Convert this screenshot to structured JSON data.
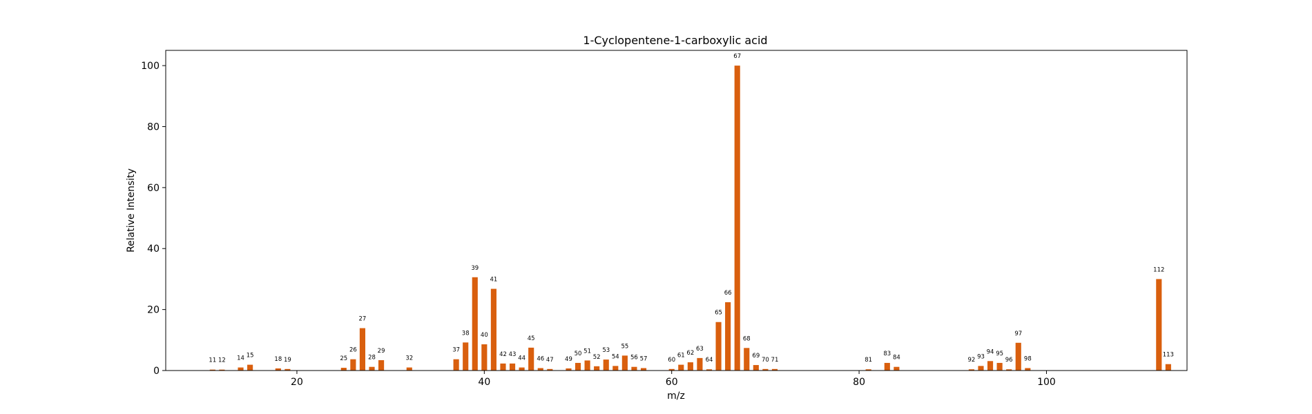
{
  "chart_data": {
    "type": "bar",
    "title": "1-Cyclopentene-1-carboxylic acid",
    "xlabel": "m/z",
    "ylabel": "Relative Intensity",
    "xlim": [
      6,
      115
    ],
    "ylim": [
      0,
      105
    ],
    "xticks": [
      20,
      40,
      60,
      80,
      100
    ],
    "yticks": [
      0,
      20,
      40,
      60,
      80,
      100
    ],
    "grid": false,
    "bar_color": "#d95f0e",
    "x": [
      11,
      12,
      14,
      15,
      18,
      19,
      25,
      26,
      27,
      28,
      29,
      32,
      37,
      38,
      39,
      40,
      41,
      42,
      43,
      44,
      45,
      46,
      47,
      49,
      50,
      51,
      52,
      53,
      54,
      55,
      56,
      57,
      60,
      61,
      62,
      63,
      64,
      65,
      66,
      67,
      68,
      69,
      70,
      71,
      81,
      83,
      84,
      92,
      93,
      94,
      95,
      96,
      97,
      98,
      112,
      113
    ],
    "values": [
      0.3,
      0.3,
      1.0,
      1.9,
      0.7,
      0.5,
      0.9,
      3.7,
      13.9,
      1.2,
      3.4,
      1.0,
      3.7,
      9.2,
      30.6,
      8.6,
      26.8,
      2.3,
      2.3,
      1.0,
      7.5,
      0.8,
      0.5,
      0.7,
      2.5,
      3.3,
      1.4,
      3.6,
      1.5,
      4.9,
      1.2,
      0.8,
      0.5,
      1.9,
      2.7,
      4.1,
      0.4,
      15.9,
      22.4,
      100.0,
      7.4,
      1.8,
      0.5,
      0.5,
      0.4,
      2.5,
      1.2,
      0.4,
      1.5,
      3.1,
      2.5,
      0.4,
      9.1,
      0.8,
      30.0,
      2.1
    ]
  }
}
